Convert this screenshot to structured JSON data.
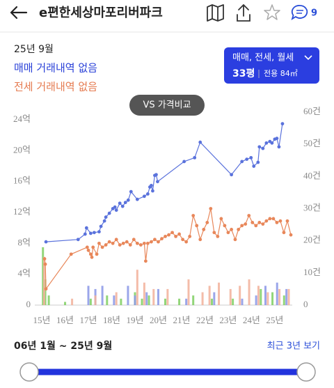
{
  "header": {
    "title": "e편한세상마포리버파크",
    "comment_count": 9
  },
  "summary": {
    "date": "25년 9월",
    "sale": "매매 거래내역 없음",
    "jeonse": "전세 거래내역 없음"
  },
  "filter": {
    "deal_types": "매매, 전세, 월세",
    "size": "33평",
    "area": "전용 84㎡"
  },
  "compare_button": "VS 가격비교",
  "chart_data": {
    "type": "combo",
    "xlim": [
      14.7,
      25.75
    ],
    "xticks": [
      {
        "value": 15,
        "label": "15년"
      },
      {
        "value": 16,
        "label": "16년"
      },
      {
        "value": 17,
        "label": "17년"
      },
      {
        "value": 18,
        "label": "18년"
      },
      {
        "value": 19,
        "label": "19년"
      },
      {
        "value": 20,
        "label": "20년"
      },
      {
        "value": 21,
        "label": "21년"
      },
      {
        "value": 22,
        "label": "22년"
      },
      {
        "value": 23,
        "label": "23년"
      },
      {
        "value": 24,
        "label": "24년"
      },
      {
        "value": 25,
        "label": "25년"
      }
    ],
    "ylim": [
      0,
      25
    ],
    "yticks": [
      0,
      {
        "value": 4,
        "label": "4억"
      },
      {
        "value": 8,
        "label": "8억"
      },
      {
        "value": 12,
        "label": "12억"
      },
      {
        "value": 16,
        "label": "16억"
      },
      {
        "value": 20,
        "label": "20억"
      },
      {
        "value": 24,
        "label": "24억"
      }
    ],
    "y2lim": [
      0,
      60
    ],
    "y2ticks": [
      0,
      {
        "value": 10,
        "label": "10건"
      },
      {
        "value": 20,
        "label": "20건"
      },
      {
        "value": 30,
        "label": "30건"
      },
      {
        "value": 40,
        "label": "40건"
      },
      {
        "value": 50,
        "label": "50건"
      },
      {
        "value": 60,
        "label": "60건"
      }
    ],
    "series": [
      {
        "type": "bar",
        "axis": "y2",
        "color": "#7fcf62",
        "x": [
          15.05,
          15.15,
          15.3,
          16.0,
          17.1,
          17.8,
          18.4,
          19.0,
          19.3,
          19.6,
          20.3,
          20.9,
          21.5,
          22.3,
          23.2,
          24.4,
          24.9,
          25.4
        ],
        "values": [
          18,
          8,
          3,
          1,
          2,
          3,
          2,
          4,
          2,
          3,
          2,
          2,
          3,
          2,
          2,
          5,
          4,
          3
        ]
      },
      {
        "type": "bar",
        "axis": "y2",
        "color": "#8a96e6",
        "x": [
          17.0,
          17.3,
          17.6,
          18.1,
          18.7,
          19.0,
          19.5,
          20.0,
          21.2,
          22.4,
          23.6,
          24.2,
          24.6,
          25.1,
          25.5
        ],
        "values": [
          6,
          5,
          6,
          3,
          6,
          3,
          4,
          5,
          2,
          4,
          2,
          3,
          6,
          7,
          5
        ]
      },
      {
        "type": "bar",
        "axis": "y2",
        "color": "#f2b09a",
        "x": [
          15.1,
          16.3,
          17.3,
          18.2,
          19.1,
          19.4,
          19.8,
          20.4,
          21.3,
          21.9,
          22.2,
          22.6,
          23.1,
          23.5,
          23.9,
          24.3,
          24.7,
          25.2,
          25.6
        ],
        "values": [
          15,
          2,
          3,
          4,
          11,
          7,
          5,
          5,
          8,
          4,
          6,
          7,
          5,
          6,
          8,
          6,
          4,
          5,
          5
        ]
      },
      {
        "type": "line",
        "color": "#e8875a",
        "x": [
          15.12,
          15.15,
          15.18,
          16.26,
          16.95,
          17.0,
          17.1,
          17.15,
          17.2,
          17.36,
          17.46,
          17.6,
          17.75,
          17.9,
          18.05,
          18.2,
          18.35,
          18.5,
          18.65,
          18.8,
          18.95,
          19.1,
          19.25,
          19.4,
          19.46,
          19.55,
          19.7,
          19.85,
          20.0,
          20.15,
          20.3,
          20.45,
          20.6,
          20.75,
          20.9,
          21.05,
          21.2,
          21.35,
          21.5,
          21.65,
          21.8,
          21.95,
          22.1,
          22.25,
          22.4,
          22.55,
          22.7,
          22.85,
          23.0,
          23.14,
          23.3,
          23.44,
          23.59,
          23.74,
          23.89,
          24.04,
          24.19,
          24.34,
          24.49,
          24.64,
          24.79,
          24.94,
          25.09,
          25.24,
          25.39,
          25.54,
          25.69
        ],
        "values": [
          6.0,
          5.3,
          2.1,
          6.6,
          7.5,
          7.1,
          6.6,
          6.2,
          7.5,
          6.6,
          8.0,
          7.5,
          7.8,
          8.2,
          8.0,
          8.5,
          7.8,
          8.0,
          8.2,
          7.8,
          8.5,
          8.0,
          7.8,
          8.0,
          5.7,
          8.0,
          8.2,
          8.5,
          8.2,
          8.6,
          8.9,
          9.1,
          9.4,
          8.9,
          9.2,
          8.5,
          8.2,
          8.9,
          11.6,
          10.3,
          8.5,
          9.8,
          10.7,
          12.5,
          9.4,
          8.9,
          11.2,
          10.3,
          9.4,
          9.8,
          8.5,
          9.8,
          10.3,
          10.5,
          11.6,
          10.7,
          10.3,
          10.7,
          10.5,
          10.9,
          11.2,
          11.2,
          10.7,
          10.9,
          9.4,
          10.9,
          9.1
        ]
      },
      {
        "type": "line",
        "color": "#5a72dc",
        "x": [
          15.18,
          16.56,
          16.86,
          16.92,
          17.1,
          17.25,
          17.46,
          17.54,
          17.69,
          17.75,
          17.9,
          18.05,
          18.14,
          18.2,
          18.35,
          18.47,
          18.59,
          18.71,
          18.83,
          19.1,
          19.4,
          19.55,
          19.64,
          19.7,
          19.76,
          19.85,
          19.91,
          19.97,
          21.11,
          21.56,
          21.8,
          23.14,
          23.59,
          23.8,
          23.98,
          24.1,
          24.28,
          24.34,
          24.49,
          24.64,
          24.79,
          24.88,
          25.0,
          25.09,
          25.18,
          25.33
        ],
        "values": [
          8.2,
          8.5,
          9.2,
          10.0,
          9.3,
          9.4,
          9.5,
          10.2,
          10.9,
          11.4,
          11.9,
          12.5,
          12.7,
          12.3,
          13.2,
          12.8,
          13.3,
          13.6,
          14.7,
          13.7,
          14.1,
          14.4,
          15.3,
          15.5,
          14.8,
          16.8,
          16.9,
          16.0,
          18.6,
          19.1,
          21.1,
          16.9,
          18.6,
          18.9,
          19.1,
          18.0,
          18.5,
          20.5,
          20.3,
          21.0,
          21.2,
          21.0,
          21.5,
          21.6,
          20.5,
          23.5
        ]
      }
    ]
  },
  "footer": {
    "range": "06년 1월 ~ 25년 9월",
    "link": "최근 3년 보기"
  }
}
